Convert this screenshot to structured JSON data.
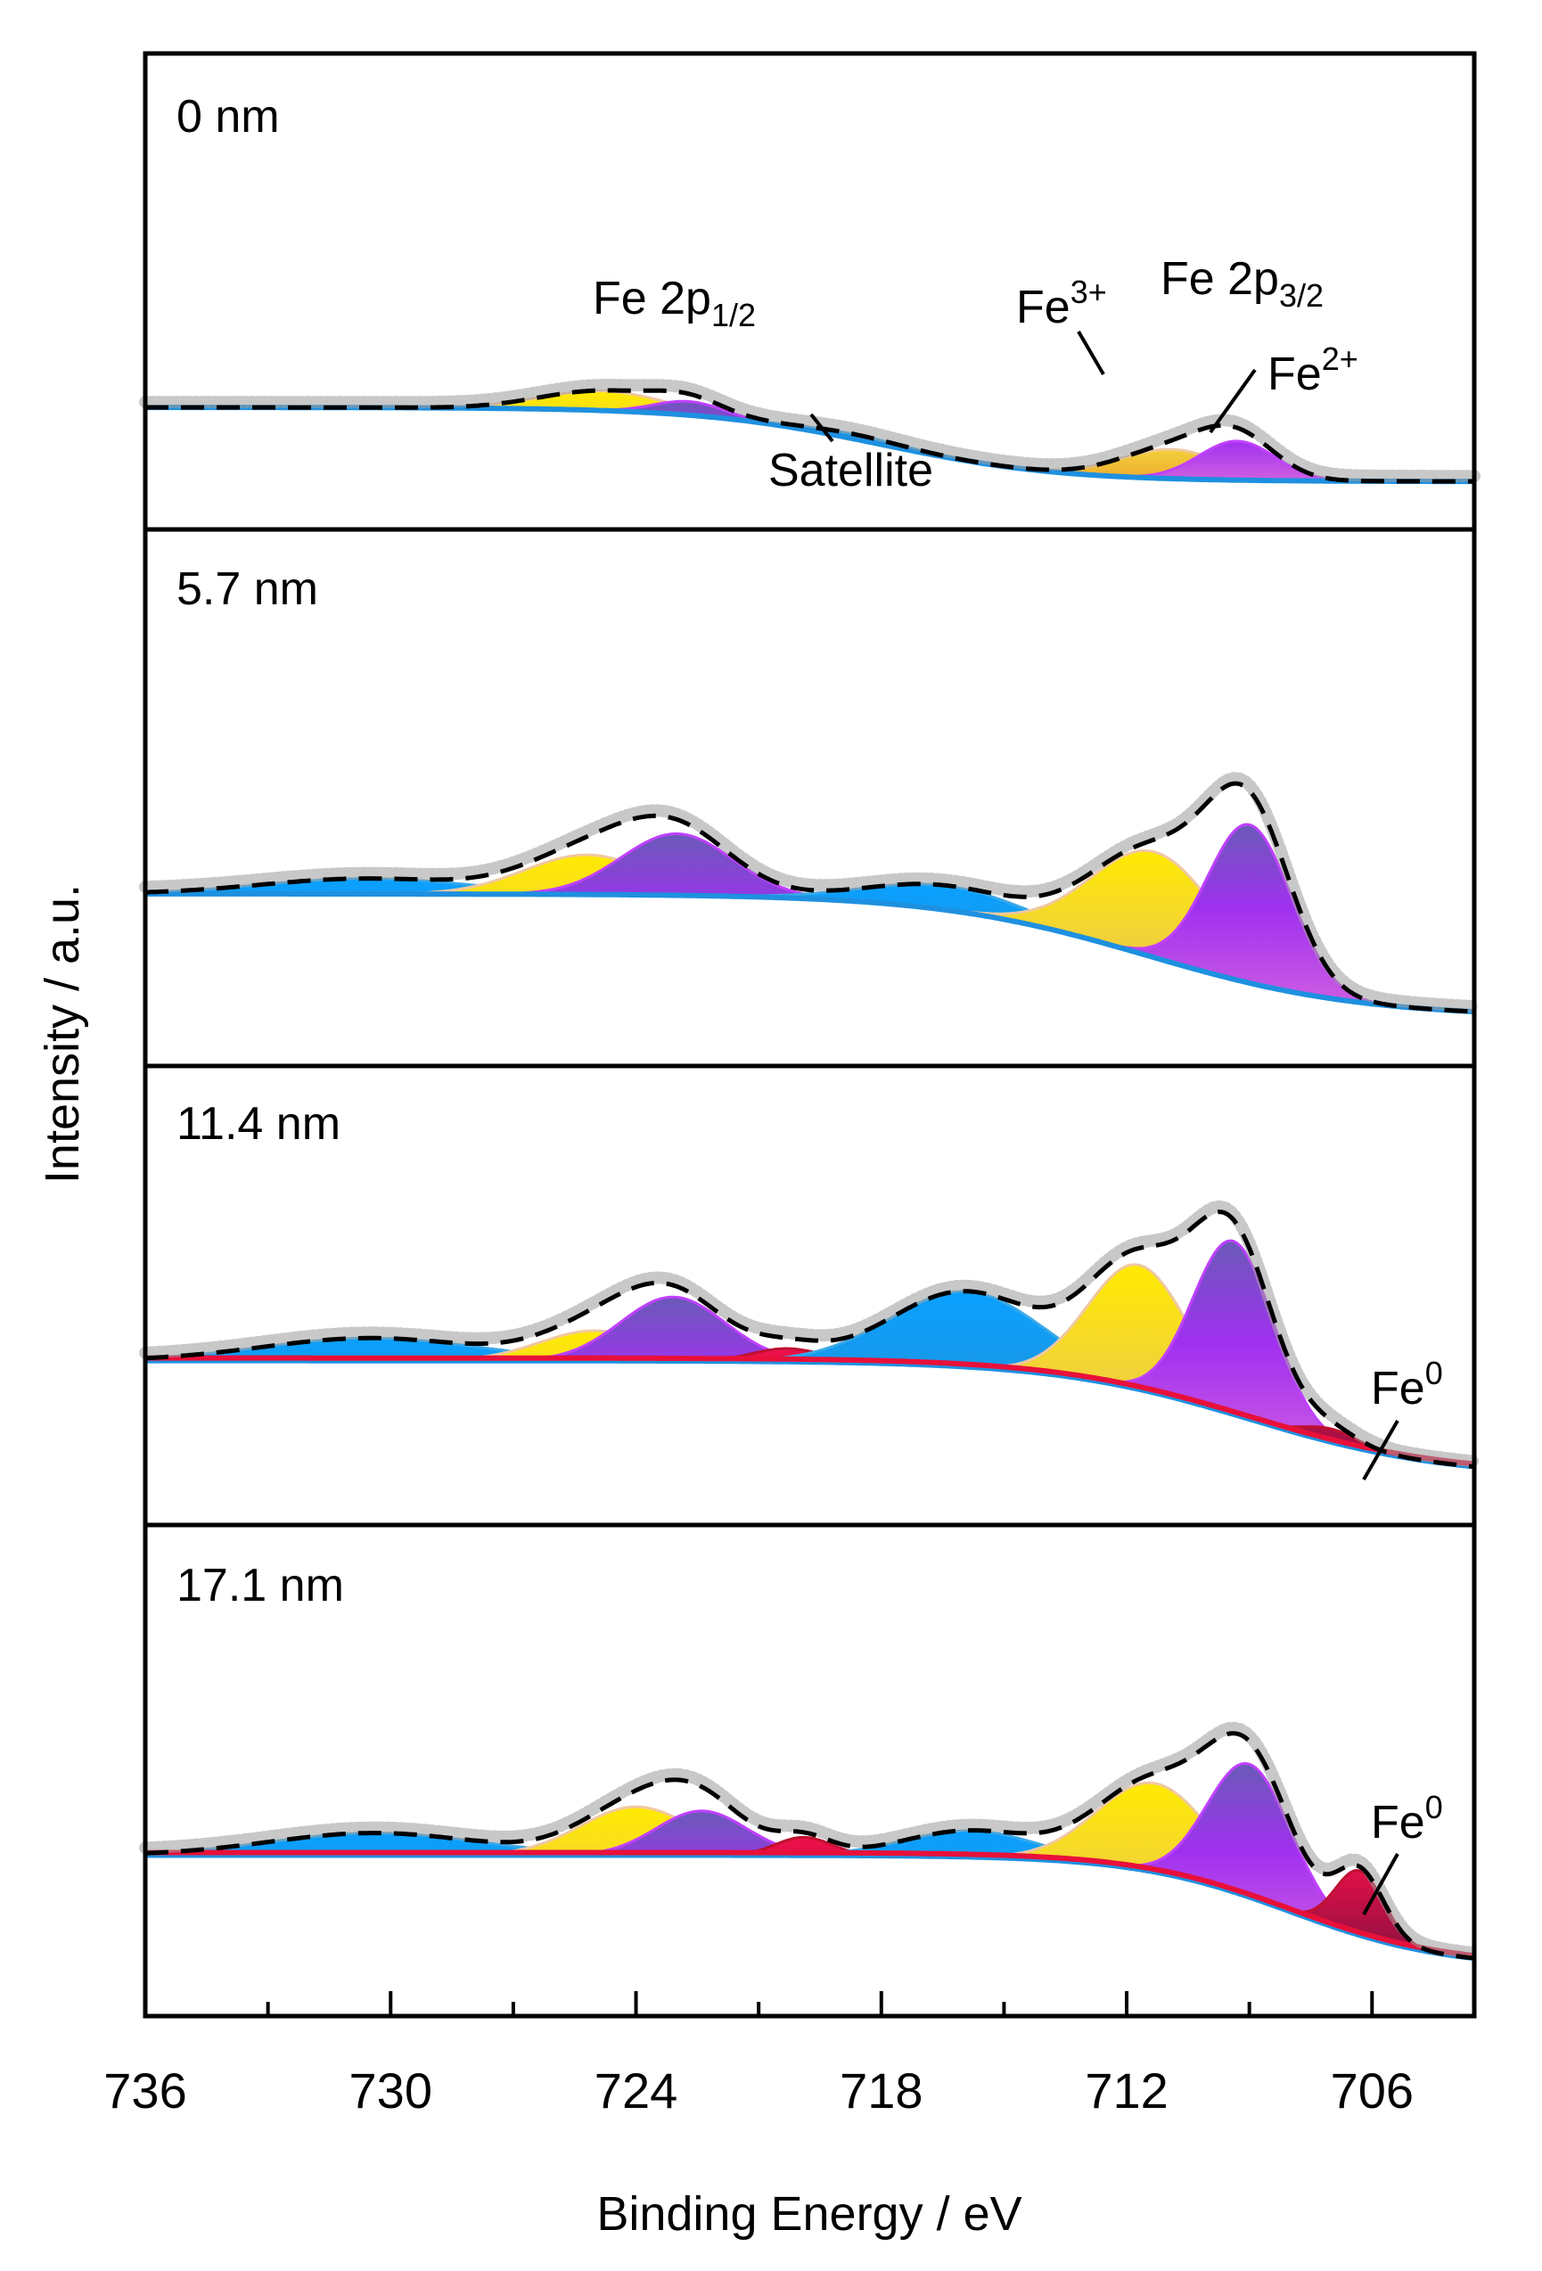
{
  "chart_data": {
    "type": "area",
    "xlabel": "Binding Energy / eV",
    "ylabel": "Intensity / a.u.",
    "xlim": [
      736,
      703.5
    ],
    "x_reversed": true,
    "x_ticks": [
      736,
      730,
      724,
      718,
      712,
      706
    ],
    "colors": {
      "Fe3+": "#ffe81a",
      "Fe2+": "#a020f0",
      "Satellite": "#1ea0f0",
      "Fe0": "#e8103a",
      "background": "#1e90e0",
      "envelope": "#000000",
      "data": "#a0a0a0"
    },
    "panels": [
      {
        "label": "0 nm",
        "bg_left": 0.21,
        "bg_right": 0.02,
        "bg_mid": 718,
        "bg_width": 2.2,
        "peaks": [
          {
            "species": "Fe3+",
            "center": 710.9,
            "height": 0.075,
            "fwhm": 3.0
          },
          {
            "species": "Fe2+",
            "center": 709.3,
            "height": 0.1,
            "fwhm": 2.2
          },
          {
            "species": "Fe3+",
            "center": 724.8,
            "height": 0.05,
            "fwhm": 3.6
          },
          {
            "species": "Fe2+",
            "center": 722.7,
            "height": 0.035,
            "fwhm": 2.0
          },
          {
            "species": "Satellite",
            "center": 718.7,
            "height": 0.012,
            "fwhm": 3.0
          }
        ],
        "annotations": [
          "Fe 2p1/2",
          "Fe 2p3/2",
          "Fe3+",
          "Fe2+",
          "Satellite"
        ]
      },
      {
        "label": "5.7 nm",
        "bg_left": 0.3,
        "bg_right": 0.02,
        "bg_mid": 711.5,
        "bg_width": 2.6,
        "peaks": [
          {
            "species": "Satellite",
            "center": 730.6,
            "height": 0.035,
            "fwhm": 6.0
          },
          {
            "species": "Fe3+",
            "center": 725.2,
            "height": 0.09,
            "fwhm": 3.6
          },
          {
            "species": "Fe2+",
            "center": 723.0,
            "height": 0.14,
            "fwhm": 3.2
          },
          {
            "species": "Satellite",
            "center": 716.4,
            "height": 0.055,
            "fwhm": 4.5
          },
          {
            "species": "Fe3+",
            "center": 711.3,
            "height": 0.24,
            "fwhm": 3.6
          },
          {
            "species": "Fe2+",
            "center": 709.0,
            "height": 0.36,
            "fwhm": 2.4
          }
        ],
        "annotations": []
      },
      {
        "label": "11.4 nm",
        "bg_left": 0.33,
        "bg_right": 0.02,
        "bg_mid": 709.0,
        "bg_width": 2.4,
        "peaks": [
          {
            "species": "Satellite",
            "center": 730.5,
            "height": 0.06,
            "fwhm": 6.2
          },
          {
            "species": "Fe3+",
            "center": 725.0,
            "height": 0.08,
            "fwhm": 3.2
          },
          {
            "species": "Fe2+",
            "center": 723.1,
            "height": 0.17,
            "fwhm": 3.0
          },
          {
            "species": "Fe0",
            "center": 720.3,
            "height": 0.035,
            "fwhm": 2.0
          },
          {
            "species": "Satellite",
            "center": 715.9,
            "height": 0.2,
            "fwhm": 4.4
          },
          {
            "species": "Fe3+",
            "center": 711.7,
            "height": 0.33,
            "fwhm": 2.9
          },
          {
            "species": "Fe2+",
            "center": 709.4,
            "height": 0.46,
            "fwhm": 2.3
          },
          {
            "species": "Fe0",
            "center": 707.0,
            "height": 0.035,
            "fwhm": 1.6
          }
        ],
        "annotations": [
          "Fe0"
        ]
      },
      {
        "label": "17.1 nm",
        "bg_left": 0.3,
        "bg_right": 0.02,
        "bg_mid": 708.0,
        "bg_width": 1.9,
        "peaks": [
          {
            "species": "Satellite",
            "center": 730.4,
            "height": 0.055,
            "fwhm": 6.0
          },
          {
            "species": "Fe3+",
            "center": 724.0,
            "height": 0.12,
            "fwhm": 3.2
          },
          {
            "species": "Fe2+",
            "center": 722.4,
            "height": 0.11,
            "fwhm": 2.6
          },
          {
            "species": "Fe0",
            "center": 719.9,
            "height": 0.045,
            "fwhm": 1.6
          },
          {
            "species": "Satellite",
            "center": 715.8,
            "height": 0.065,
            "fwhm": 3.8
          },
          {
            "species": "Fe3+",
            "center": 711.3,
            "height": 0.22,
            "fwhm": 3.3
          },
          {
            "species": "Fe2+",
            "center": 709.0,
            "height": 0.33,
            "fwhm": 2.4
          },
          {
            "species": "Fe0",
            "center": 706.3,
            "height": 0.16,
            "fwhm": 1.4
          }
        ],
        "annotations": [
          "Fe0"
        ]
      }
    ]
  }
}
